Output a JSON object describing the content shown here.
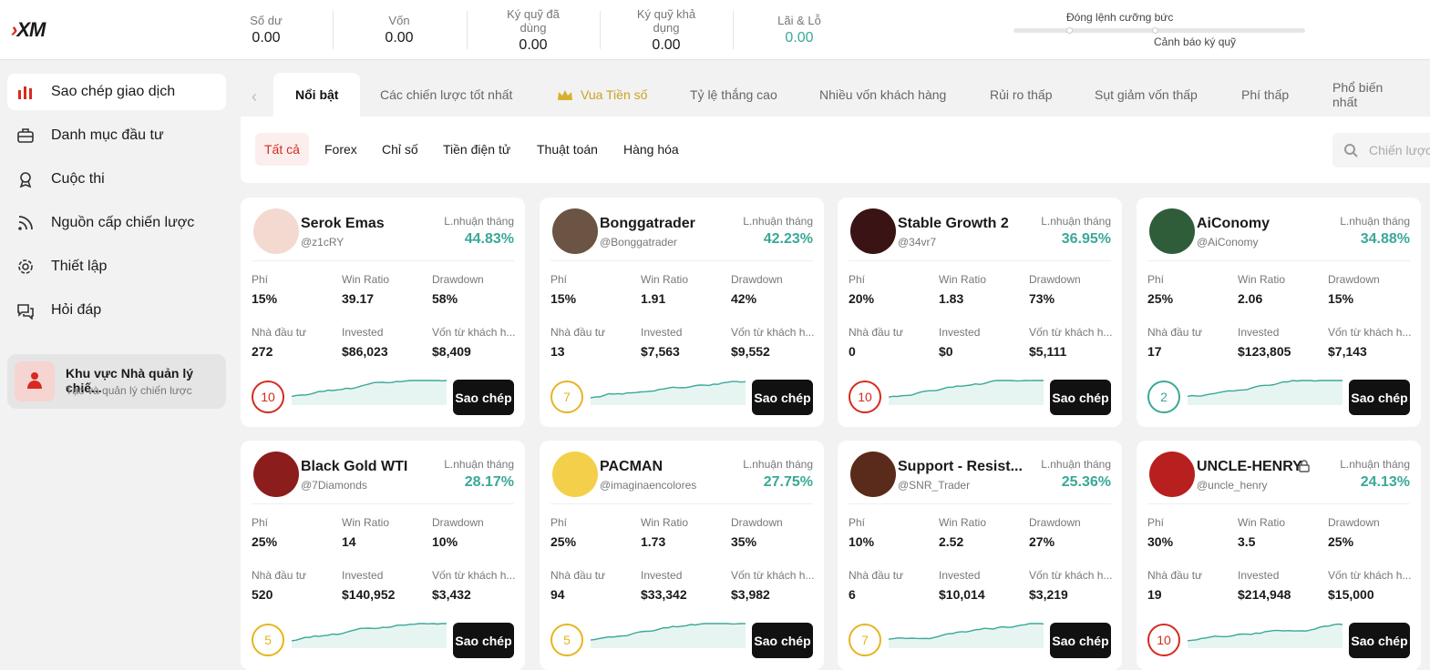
{
  "header": {
    "logo": "XM",
    "stats": [
      {
        "label": "Số dư",
        "value": "0.00"
      },
      {
        "label": "Vốn",
        "value": "0.00"
      },
      {
        "label": "Ký quỹ đã dùng",
        "value": "0.00"
      },
      {
        "label": "Ký quỹ khả dụng",
        "value": "0.00"
      },
      {
        "label": "Lãi & Lỗ",
        "value": "0.00"
      }
    ],
    "margin_bar": {
      "forced_close": "Đóng lệnh cưỡng bức",
      "margin_warning": "Cảnh báo ký quỹ"
    }
  },
  "sidebar": {
    "items": [
      "Sao chép giao dịch",
      "Danh mục đầu tư",
      "Cuộc thi",
      "Nguồn cấp chiến lược",
      "Thiết lập",
      "Hỏi đáp"
    ],
    "manager": {
      "title": "Khu vực Nhà quản lý chiế...",
      "subtitle": "Tạo và quản lý chiến lược"
    }
  },
  "tabs": [
    "Nổi bật",
    "Các chiến lược tốt nhất",
    "Vua Tiền số",
    "Tỷ lệ thắng cao",
    "Nhiều vốn khách hàng",
    "Rủi ro thấp",
    "Sụt giảm vốn thấp",
    "Phí thấp",
    "Phổ biến nhất"
  ],
  "filters": [
    "Tất cả",
    "Forex",
    "Chỉ số",
    "Tiền điện tử",
    "Thuật toán",
    "Hàng hóa"
  ],
  "search_placeholder": "Chiến lược",
  "card_labels": {
    "profit": "L.nhuận tháng",
    "fee": "Phí",
    "win_ratio": "Win Ratio",
    "drawdown": "Drawdown",
    "investors": "Nhà đầu tư",
    "invested": "Invested",
    "client_funds": "Vốn từ khách h...",
    "copy": "Sao chép"
  },
  "cards": [
    {
      "name": "Serok Emas",
      "handle": "@z1cRY",
      "profit": "44.83%",
      "fee": "15%",
      "win_ratio": "39.17",
      "drawdown": "58%",
      "investors": "272",
      "invested": "$86,023",
      "client_funds": "$8,409",
      "risk": "10"
    },
    {
      "name": "Bonggatrader",
      "handle": "@Bonggatrader",
      "profit": "42.23%",
      "fee": "15%",
      "win_ratio": "1.91",
      "drawdown": "42%",
      "investors": "13",
      "invested": "$7,563",
      "client_funds": "$9,552",
      "risk": "7"
    },
    {
      "name": "Stable Growth 2",
      "handle": "@34vr7",
      "profit": "36.95%",
      "fee": "20%",
      "win_ratio": "1.83",
      "drawdown": "73%",
      "investors": "0",
      "invested": "$0",
      "client_funds": "$5,111",
      "risk": "10"
    },
    {
      "name": "AiConomy",
      "handle": "@AiConomy",
      "profit": "34.88%",
      "fee": "25%",
      "win_ratio": "2.06",
      "drawdown": "15%",
      "investors": "17",
      "invested": "$123,805",
      "client_funds": "$7,143",
      "risk": "2"
    },
    {
      "name": "Black Gold WTI",
      "handle": "@7Diamonds",
      "profit": "28.17%",
      "fee": "25%",
      "win_ratio": "14",
      "drawdown": "10%",
      "investors": "520",
      "invested": "$140,952",
      "client_funds": "$3,432",
      "risk": "5"
    },
    {
      "name": "PACMAN",
      "handle": "@imaginaencolores",
      "profit": "27.75%",
      "fee": "25%",
      "win_ratio": "1.73",
      "drawdown": "35%",
      "investors": "94",
      "invested": "$33,342",
      "client_funds": "$3,982",
      "risk": "5"
    },
    {
      "name": "Support - Resist...",
      "handle": "@SNR_Trader",
      "profit": "25.36%",
      "fee": "10%",
      "win_ratio": "2.52",
      "drawdown": "27%",
      "investors": "6",
      "invested": "$10,014",
      "client_funds": "$3,219",
      "risk": "7"
    },
    {
      "name": "UNCLE-HENRY",
      "handle": "@uncle_henry",
      "profit": "24.13%",
      "fee": "30%",
      "win_ratio": "3.5",
      "drawdown": "25%",
      "investors": "19",
      "invested": "$214,948",
      "client_funds": "$15,000",
      "risk": "10",
      "locked": true
    }
  ]
}
